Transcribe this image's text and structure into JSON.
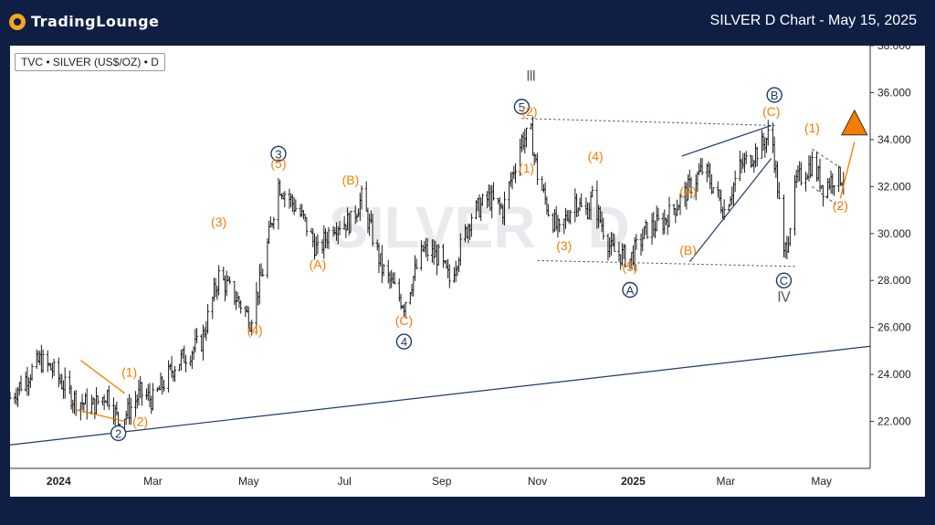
{
  "header": {
    "logo_text": "TradingLounge",
    "title": "SILVER D Chart - May 15, 2025"
  },
  "legend": "TVC • SILVER (US$/OZ) • D",
  "watermark": "SILVER · D",
  "colors": {
    "accent": "#f57c00",
    "navy": "#1f3a6b",
    "gray": "#666666",
    "header_bg": "#0f1f44"
  },
  "chart_data": {
    "type": "candlestick",
    "title": "SILVER D Chart",
    "ylim": [
      20.0,
      38.0
    ],
    "yticks": [
      "38.000",
      "36.000",
      "34.000",
      "32.000",
      "30.000",
      "28.000",
      "26.000",
      "24.000",
      "22.000"
    ],
    "x_range": [
      "2023-12-01",
      "2025-06-01"
    ],
    "xticks": [
      {
        "label": "2024",
        "date": "2024-01-01",
        "bold": true
      },
      {
        "label": "Mar",
        "date": "2024-03-01"
      },
      {
        "label": "May",
        "date": "2024-05-01"
      },
      {
        "label": "Jul",
        "date": "2024-07-01"
      },
      {
        "label": "Sep",
        "date": "2024-09-01"
      },
      {
        "label": "Nov",
        "date": "2024-11-01"
      },
      {
        "label": "2025",
        "date": "2025-01-01",
        "bold": true
      },
      {
        "label": "Mar",
        "date": "2025-03-01"
      },
      {
        "label": "May",
        "date": "2025-05-01"
      }
    ],
    "price_path": [
      [
        "2023-12-01",
        23.0
      ],
      [
        "2023-12-20",
        24.6
      ],
      [
        "2023-12-28",
        24.2
      ],
      [
        "2024-01-10",
        23.0
      ],
      [
        "2024-01-22",
        22.6
      ],
      [
        "2024-02-01",
        23.2
      ],
      [
        "2024-02-08",
        22.0
      ],
      [
        "2024-02-14",
        22.4
      ],
      [
        "2024-02-22",
        23.2
      ],
      [
        "2024-03-01",
        22.9
      ],
      [
        "2024-03-15",
        24.4
      ],
      [
        "2024-04-01",
        25.4
      ],
      [
        "2024-04-12",
        28.2
      ],
      [
        "2024-04-26",
        27.0
      ],
      [
        "2024-05-02",
        26.3
      ],
      [
        "2024-05-10",
        28.4
      ],
      [
        "2024-05-20",
        32.1
      ],
      [
        "2024-05-28",
        31.4
      ],
      [
        "2024-06-05",
        30.6
      ],
      [
        "2024-06-14",
        29.2
      ],
      [
        "2024-06-24",
        30.4
      ],
      [
        "2024-07-05",
        30.5
      ],
      [
        "2024-07-12",
        31.5
      ],
      [
        "2024-07-25",
        28.5
      ],
      [
        "2024-08-05",
        27.3
      ],
      [
        "2024-08-08",
        27.0
      ],
      [
        "2024-08-20",
        29.3
      ],
      [
        "2024-08-30",
        29.0
      ],
      [
        "2024-09-06",
        28.0
      ],
      [
        "2024-09-20",
        30.8
      ],
      [
        "2024-10-01",
        31.5
      ],
      [
        "2024-10-10",
        31.0
      ],
      [
        "2024-10-22",
        34.0
      ],
      [
        "2024-10-28",
        34.2
      ],
      [
        "2024-11-01",
        32.5
      ],
      [
        "2024-11-08",
        31.0
      ],
      [
        "2024-11-15",
        30.0
      ],
      [
        "2024-11-25",
        31.5
      ],
      [
        "2024-12-01",
        30.8
      ],
      [
        "2024-12-06",
        31.5
      ],
      [
        "2024-12-18",
        29.3
      ],
      [
        "2024-12-30",
        28.9
      ],
      [
        "2025-01-10",
        30.2
      ],
      [
        "2025-01-20",
        30.5
      ],
      [
        "2025-02-01",
        31.5
      ],
      [
        "2025-02-15",
        32.8
      ],
      [
        "2025-02-28",
        31.0
      ],
      [
        "2025-03-10",
        32.8
      ],
      [
        "2025-03-25",
        33.8
      ],
      [
        "2025-03-30",
        34.4
      ],
      [
        "2025-04-03",
        32.0
      ],
      [
        "2025-04-07",
        29.0
      ],
      [
        "2025-04-10",
        30.0
      ],
      [
        "2025-04-15",
        32.2
      ],
      [
        "2025-04-25",
        33.0
      ],
      [
        "2025-05-02",
        32.0
      ],
      [
        "2025-05-09",
        32.4
      ],
      [
        "2025-05-15",
        32.4
      ]
    ],
    "annotations": [
      {
        "text": "Ⅲ",
        "date": "2024-10-28",
        "price": 36.5,
        "style": "gray"
      },
      {
        "text": "Ⅳ",
        "date": "2025-04-07",
        "price": 27.1,
        "style": "gray"
      },
      {
        "text": "2",
        "date": "2024-02-08",
        "price": 21.5,
        "style": "circle"
      },
      {
        "text": "3",
        "date": "2024-05-20",
        "price": 33.4,
        "style": "circle"
      },
      {
        "text": "4",
        "date": "2024-08-08",
        "price": 25.4,
        "style": "circle"
      },
      {
        "text": "5",
        "date": "2024-10-22",
        "price": 35.4,
        "style": "circle"
      },
      {
        "text": "A",
        "date": "2024-12-30",
        "price": 27.6,
        "style": "circle"
      },
      {
        "text": "B",
        "date": "2025-04-01",
        "price": 35.9,
        "style": "circle"
      },
      {
        "text": "C",
        "date": "2025-04-07",
        "price": 28.0,
        "style": "circle"
      },
      {
        "text": "(1)",
        "date": "2024-02-15",
        "price": 23.9,
        "style": "orange"
      },
      {
        "text": "(2)",
        "date": "2024-02-22",
        "price": 21.8,
        "style": "orange"
      },
      {
        "text": "(3)",
        "date": "2024-04-12",
        "price": 30.3,
        "style": "orange"
      },
      {
        "text": "(4)",
        "date": "2024-05-05",
        "price": 25.7,
        "style": "orange"
      },
      {
        "text": "(5)",
        "date": "2024-05-20",
        "price": 32.8,
        "style": "orange"
      },
      {
        "text": "(A)",
        "date": "2024-06-14",
        "price": 28.5,
        "style": "orange"
      },
      {
        "text": "(B)",
        "date": "2024-07-05",
        "price": 32.1,
        "style": "orange"
      },
      {
        "text": "(C)",
        "date": "2024-08-08",
        "price": 26.1,
        "style": "orange"
      },
      {
        "text": "(2)",
        "date": "2024-10-27",
        "price": 35.0,
        "style": "orange"
      },
      {
        "text": "(1)",
        "date": "2024-10-25",
        "price": 32.6,
        "style": "orange"
      },
      {
        "text": "(3)",
        "date": "2024-11-18",
        "price": 29.3,
        "style": "orange"
      },
      {
        "text": "(4)",
        "date": "2024-12-08",
        "price": 33.1,
        "style": "orange"
      },
      {
        "text": "(5)",
        "date": "2024-12-30",
        "price": 28.4,
        "style": "orange"
      },
      {
        "text": "(A)",
        "date": "2025-02-05",
        "price": 31.6,
        "style": "orange"
      },
      {
        "text": "(B)",
        "date": "2025-02-05",
        "price": 29.1,
        "style": "orange"
      },
      {
        "text": "(C)",
        "date": "2025-03-30",
        "price": 35.0,
        "style": "orange"
      },
      {
        "text": "(1)",
        "date": "2025-04-25",
        "price": 34.3,
        "style": "orange"
      },
      {
        "text": "(2)",
        "date": "2025-05-13",
        "price": 31.0,
        "style": "orange"
      }
    ],
    "trendlines": [
      {
        "from": [
          "2023-12-01",
          21.0
        ],
        "to": [
          "2025-06-01",
          25.2
        ],
        "style": "solid-navy"
      },
      {
        "from": [
          "2024-10-22",
          34.9
        ],
        "to": [
          "2025-04-02",
          34.6
        ],
        "style": "dotted"
      },
      {
        "from": [
          "2024-11-01",
          28.85
        ],
        "to": [
          "2025-04-14",
          28.6
        ],
        "style": "dotted"
      },
      {
        "from": [
          "2024-01-15",
          24.6
        ],
        "to": [
          "2024-02-12",
          23.2
        ],
        "style": "orange"
      },
      {
        "from": [
          "2024-01-12",
          22.5
        ],
        "to": [
          "2024-02-12",
          22.0
        ],
        "style": "orange"
      },
      {
        "from": [
          "2025-02-01",
          33.3
        ],
        "to": [
          "2025-03-30",
          34.6
        ],
        "style": "solid-navy"
      },
      {
        "from": [
          "2025-02-06",
          28.8
        ],
        "to": [
          "2025-03-30",
          33.2
        ],
        "style": "solid-navy"
      },
      {
        "from": [
          "2025-04-25",
          33.6
        ],
        "to": [
          "2025-05-13",
          32.8
        ],
        "style": "dash-thin"
      },
      {
        "from": [
          "2025-04-25",
          32.0
        ],
        "to": [
          "2025-05-13",
          31.1
        ],
        "style": "dash-thin"
      },
      {
        "from": [
          "2025-05-13",
          31.5
        ],
        "to": [
          "2025-05-22",
          33.9
        ],
        "style": "orange"
      }
    ],
    "target_arrow": {
      "date": "2025-05-22",
      "price": 34.2
    }
  }
}
